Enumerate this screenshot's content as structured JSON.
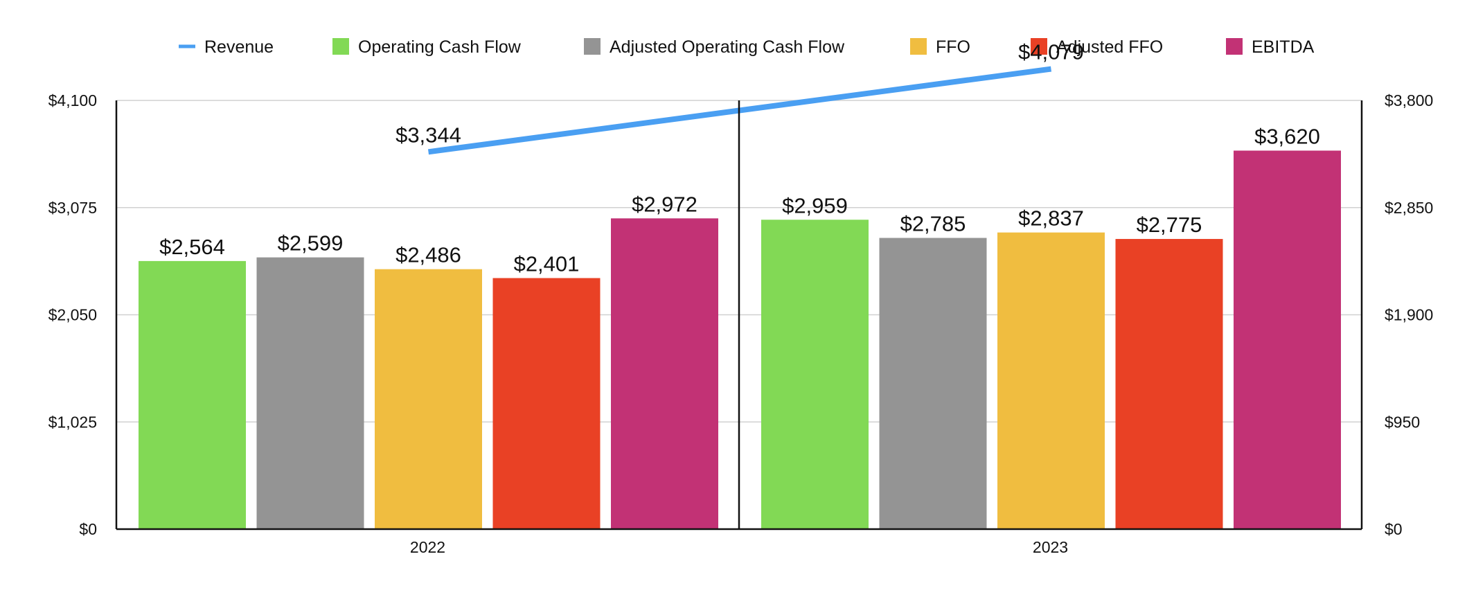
{
  "chart_data": {
    "type": "bar",
    "categories": [
      "2022",
      "2023"
    ],
    "series": [
      {
        "name": "Operating Cash Flow",
        "color": "#82d955",
        "axis": "left",
        "values": [
          2564,
          2959
        ],
        "labels": [
          "$2,564",
          "$2,959"
        ]
      },
      {
        "name": "Adjusted Operating Cash Flow",
        "color": "#949494",
        "axis": "left",
        "values": [
          2599,
          2785
        ],
        "labels": [
          "$2,599",
          "$2,785"
        ]
      },
      {
        "name": "FFO",
        "color": "#f0bd40",
        "axis": "left",
        "values": [
          2486,
          2837
        ],
        "labels": [
          "$2,486",
          "$2,837"
        ]
      },
      {
        "name": "Adjusted FFO",
        "color": "#e94125",
        "axis": "left",
        "values": [
          2401,
          2775
        ],
        "labels": [
          "$2,401",
          "$2,775"
        ]
      },
      {
        "name": "EBITDA",
        "color": "#c23275",
        "axis": "left",
        "values": [
          2972,
          3620
        ],
        "labels": [
          "$2,972",
          "$3,620"
        ]
      }
    ],
    "line_series": {
      "name": "Revenue",
      "color": "#4a9ff2",
      "axis": "right",
      "type": "line",
      "values": [
        3344,
        4079
      ],
      "labels": [
        "$3,344",
        "$4,079"
      ]
    },
    "legend": [
      "Revenue",
      "Operating Cash Flow",
      "Adjusted Operating Cash Flow",
      "FFO",
      "Adjusted FFO",
      "EBITDA"
    ],
    "legend_position": "top",
    "left_axis": {
      "ylim": [
        0,
        4100
      ],
      "ticks": [
        0,
        1025,
        2050,
        3075,
        4100
      ],
      "tick_labels": [
        "$0",
        "$1,025",
        "$2,050",
        "$3,075",
        "$4,100"
      ]
    },
    "right_axis": {
      "ylim": [
        0,
        3800
      ],
      "ticks": [
        0,
        950,
        1900,
        2850,
        3800
      ],
      "tick_labels": [
        "$0",
        "$950",
        "$1,900",
        "$2,850",
        "$3,800"
      ]
    },
    "grid": true,
    "title": "",
    "xlabel": "",
    "ylabel": ""
  }
}
